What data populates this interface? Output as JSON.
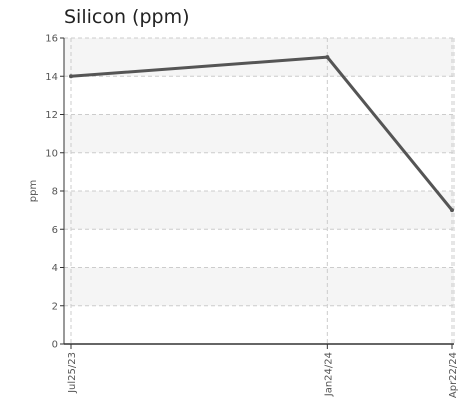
{
  "chart_data": {
    "type": "line",
    "title": "Silicon (ppm)",
    "xlabel": "",
    "ylabel": "ppm",
    "x": [
      "Jul25/23",
      "Jan24/24",
      "Apr22/24"
    ],
    "x_numeric": [
      0,
      183,
      272
    ],
    "series": [
      {
        "values": [
          14,
          15,
          7
        ]
      }
    ],
    "ylim": [
      0,
      16
    ],
    "yticks": [
      "0",
      "2",
      "4",
      "6",
      "8",
      "10",
      "12",
      "14",
      "16"
    ],
    "grid": true,
    "legend": "none",
    "colors": {
      "line": "#555555",
      "band": "#f5f5f5",
      "grid": "#cccccc",
      "axis": "#333333"
    }
  }
}
